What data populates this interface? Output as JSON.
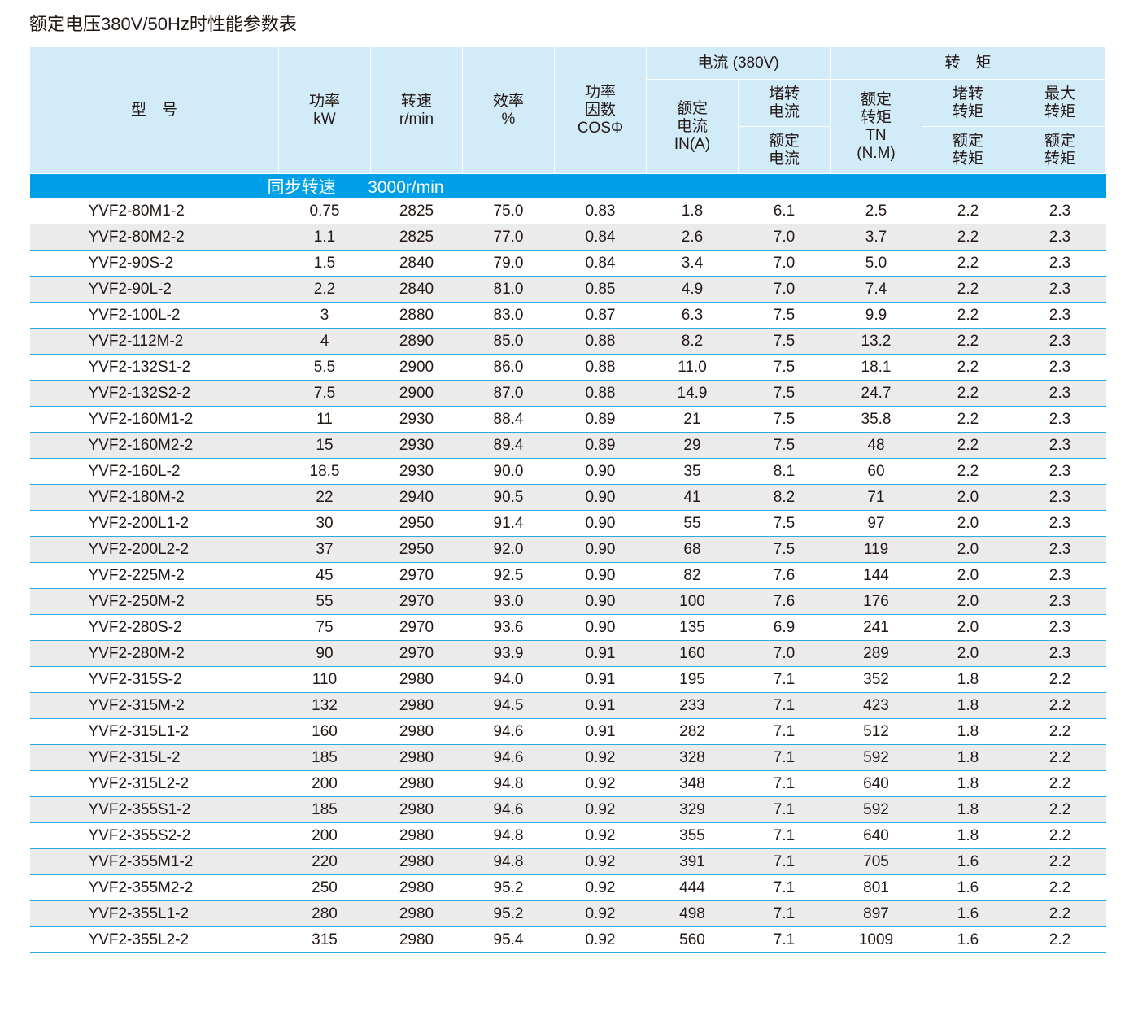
{
  "title": "额定电压380V/50Hz时性能参数表",
  "colors": {
    "header_bg": "#d2ebf9",
    "band_bg": "#00a0e9",
    "row_alt": "#ebebeb",
    "rule": "#29abe2"
  },
  "headers": {
    "model": "型　号",
    "power": "功率\nkW",
    "speed": "转速\nr/min",
    "eff": "效率\n%",
    "pf": "功率\n因数\nCOSΦ",
    "current_group": "电流 (380V)",
    "torque_group": "转　矩",
    "rated_current": "额定\n电流\nIN(A)",
    "locked_current": "堵转\n电流",
    "locked_current_den": "额定\n电流",
    "rated_torque": "额定\n转矩\nTN\n(N.M)",
    "locked_torque": "堵转\n转矩",
    "locked_torque_den": "额定\n转矩",
    "max_torque": "最大\n转矩",
    "max_torque_den": "额定\n转矩"
  },
  "band": {
    "label": "同步转速",
    "value": "3000r/min"
  },
  "rows": [
    [
      "YVF2-80M1-2",
      "0.75",
      "2825",
      "75.0",
      "0.83",
      "1.8",
      "6.1",
      "2.5",
      "2.2",
      "2.3"
    ],
    [
      "YVF2-80M2-2",
      "1.1",
      "2825",
      "77.0",
      "0.84",
      "2.6",
      "7.0",
      "3.7",
      "2.2",
      "2.3"
    ],
    [
      "YVF2-90S-2",
      "1.5",
      "2840",
      "79.0",
      "0.84",
      "3.4",
      "7.0",
      "5.0",
      "2.2",
      "2.3"
    ],
    [
      "YVF2-90L-2",
      "2.2",
      "2840",
      "81.0",
      "0.85",
      "4.9",
      "7.0",
      "7.4",
      "2.2",
      "2.3"
    ],
    [
      "YVF2-100L-2",
      "3",
      "2880",
      "83.0",
      "0.87",
      "6.3",
      "7.5",
      "9.9",
      "2.2",
      "2.3"
    ],
    [
      "YVF2-112M-2",
      "4",
      "2890",
      "85.0",
      "0.88",
      "8.2",
      "7.5",
      "13.2",
      "2.2",
      "2.3"
    ],
    [
      "YVF2-132S1-2",
      "5.5",
      "2900",
      "86.0",
      "0.88",
      "11.0",
      "7.5",
      "18.1",
      "2.2",
      "2.3"
    ],
    [
      "YVF2-132S2-2",
      "7.5",
      "2900",
      "87.0",
      "0.88",
      "14.9",
      "7.5",
      "24.7",
      "2.2",
      "2.3"
    ],
    [
      "YVF2-160M1-2",
      "11",
      "2930",
      "88.4",
      "0.89",
      "21",
      "7.5",
      "35.8",
      "2.2",
      "2.3"
    ],
    [
      "YVF2-160M2-2",
      "15",
      "2930",
      "89.4",
      "0.89",
      "29",
      "7.5",
      "48",
      "2.2",
      "2.3"
    ],
    [
      "YVF2-160L-2",
      "18.5",
      "2930",
      "90.0",
      "0.90",
      "35",
      "8.1",
      "60",
      "2.2",
      "2.3"
    ],
    [
      "YVF2-180M-2",
      "22",
      "2940",
      "90.5",
      "0.90",
      "41",
      "8.2",
      "71",
      "2.0",
      "2.3"
    ],
    [
      "YVF2-200L1-2",
      "30",
      "2950",
      "91.4",
      "0.90",
      "55",
      "7.5",
      "97",
      "2.0",
      "2.3"
    ],
    [
      "YVF2-200L2-2",
      "37",
      "2950",
      "92.0",
      "0.90",
      "68",
      "7.5",
      "119",
      "2.0",
      "2.3"
    ],
    [
      "YVF2-225M-2",
      "45",
      "2970",
      "92.5",
      "0.90",
      "82",
      "7.6",
      "144",
      "2.0",
      "2.3"
    ],
    [
      "YVF2-250M-2",
      "55",
      "2970",
      "93.0",
      "0.90",
      "100",
      "7.6",
      "176",
      "2.0",
      "2.3"
    ],
    [
      "YVF2-280S-2",
      "75",
      "2970",
      "93.6",
      "0.90",
      "135",
      "6.9",
      "241",
      "2.0",
      "2.3"
    ],
    [
      "YVF2-280M-2",
      "90",
      "2970",
      "93.9",
      "0.91",
      "160",
      "7.0",
      "289",
      "2.0",
      "2.3"
    ],
    [
      "YVF2-315S-2",
      "110",
      "2980",
      "94.0",
      "0.91",
      "195",
      "7.1",
      "352",
      "1.8",
      "2.2"
    ],
    [
      "YVF2-315M-2",
      "132",
      "2980",
      "94.5",
      "0.91",
      "233",
      "7.1",
      "423",
      "1.8",
      "2.2"
    ],
    [
      "YVF2-315L1-2",
      "160",
      "2980",
      "94.6",
      "0.91",
      "282",
      "7.1",
      "512",
      "1.8",
      "2.2"
    ],
    [
      "YVF2-315L-2",
      "185",
      "2980",
      "94.6",
      "0.92",
      "328",
      "7.1",
      "592",
      "1.8",
      "2.2"
    ],
    [
      "YVF2-315L2-2",
      "200",
      "2980",
      "94.8",
      "0.92",
      "348",
      "7.1",
      "640",
      "1.8",
      "2.2"
    ],
    [
      "YVF2-355S1-2",
      "185",
      "2980",
      "94.6",
      "0.92",
      "329",
      "7.1",
      "592",
      "1.8",
      "2.2"
    ],
    [
      "YVF2-355S2-2",
      "200",
      "2980",
      "94.8",
      "0.92",
      "355",
      "7.1",
      "640",
      "1.8",
      "2.2"
    ],
    [
      "YVF2-355M1-2",
      "220",
      "2980",
      "94.8",
      "0.92",
      "391",
      "7.1",
      "705",
      "1.6",
      "2.2"
    ],
    [
      "YVF2-355M2-2",
      "250",
      "2980",
      "95.2",
      "0.92",
      "444",
      "7.1",
      "801",
      "1.6",
      "2.2"
    ],
    [
      "YVF2-355L1-2",
      "280",
      "2980",
      "95.2",
      "0.92",
      "498",
      "7.1",
      "897",
      "1.6",
      "2.2"
    ],
    [
      "YVF2-355L2-2",
      "315",
      "2980",
      "95.4",
      "0.92",
      "560",
      "7.1",
      "1009",
      "1.6",
      "2.2"
    ]
  ]
}
